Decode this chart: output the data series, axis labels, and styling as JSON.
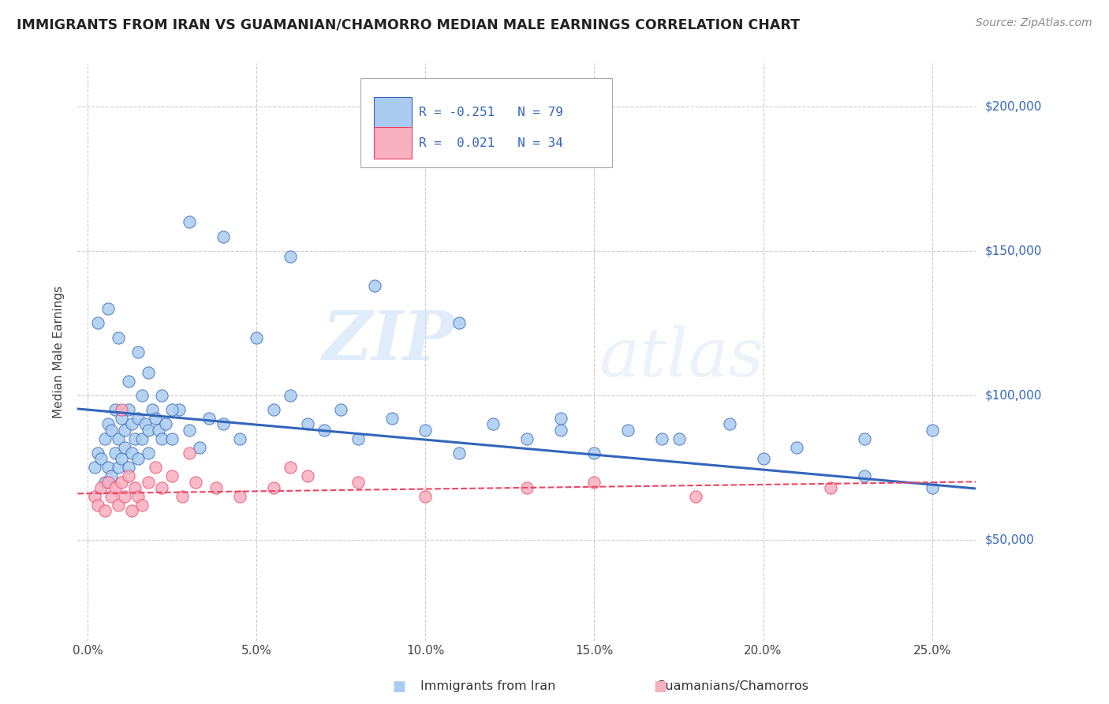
{
  "title": "IMMIGRANTS FROM IRAN VS GUAMANIAN/CHAMORRO MEDIAN MALE EARNINGS CORRELATION CHART",
  "source": "Source: ZipAtlas.com",
  "ylabel": "Median Male Earnings",
  "xlabel_ticks": [
    "0.0%",
    "5.0%",
    "10.0%",
    "15.0%",
    "20.0%",
    "25.0%"
  ],
  "xlabel_vals": [
    0.0,
    0.05,
    0.1,
    0.15,
    0.2,
    0.25
  ],
  "ylabel_ticks": [
    "$50,000",
    "$100,000",
    "$150,000",
    "$200,000"
  ],
  "ylabel_vals": [
    50000,
    100000,
    150000,
    200000
  ],
  "ylim": [
    15000,
    215000
  ],
  "xlim": [
    -0.003,
    0.263
  ],
  "r1": -0.251,
  "n1": 79,
  "r2": 0.021,
  "n2": 34,
  "legend_label1": "Immigrants from Iran",
  "legend_label2": "Guamanians/Chamorros",
  "color1": "#aaccf0",
  "color2": "#f8b0c0",
  "line_color1": "#3366bb",
  "line_color2": "#ee4466",
  "watermark_zip": "ZIP",
  "watermark_atlas": "atlas",
  "background_color": "#ffffff",
  "grid_color": "#cccccc",
  "trend1_x0": 0.0,
  "trend1_y0": 95000,
  "trend1_x1": 0.26,
  "trend1_y1": 68000,
  "trend2_x0": 0.0,
  "trend2_y0": 66000,
  "trend2_x1": 0.26,
  "trend2_y1": 70000,
  "scatter1_x": [
    0.002,
    0.003,
    0.004,
    0.005,
    0.005,
    0.006,
    0.006,
    0.007,
    0.007,
    0.008,
    0.008,
    0.009,
    0.009,
    0.01,
    0.01,
    0.011,
    0.011,
    0.012,
    0.012,
    0.013,
    0.013,
    0.014,
    0.015,
    0.015,
    0.016,
    0.016,
    0.017,
    0.018,
    0.018,
    0.019,
    0.02,
    0.021,
    0.022,
    0.023,
    0.025,
    0.027,
    0.03,
    0.033,
    0.036,
    0.04,
    0.045,
    0.05,
    0.055,
    0.06,
    0.065,
    0.07,
    0.075,
    0.08,
    0.09,
    0.1,
    0.11,
    0.12,
    0.13,
    0.14,
    0.15,
    0.16,
    0.175,
    0.19,
    0.21,
    0.23,
    0.25,
    0.003,
    0.006,
    0.009,
    0.012,
    0.015,
    0.018,
    0.022,
    0.025,
    0.03,
    0.04,
    0.06,
    0.085,
    0.11,
    0.14,
    0.17,
    0.2,
    0.23,
    0.25
  ],
  "scatter1_y": [
    75000,
    80000,
    78000,
    85000,
    70000,
    90000,
    75000,
    88000,
    72000,
    95000,
    80000,
    85000,
    75000,
    92000,
    78000,
    88000,
    82000,
    95000,
    75000,
    90000,
    80000,
    85000,
    92000,
    78000,
    100000,
    85000,
    90000,
    88000,
    80000,
    95000,
    92000,
    88000,
    85000,
    90000,
    85000,
    95000,
    88000,
    82000,
    92000,
    90000,
    85000,
    120000,
    95000,
    100000,
    90000,
    88000,
    95000,
    85000,
    92000,
    88000,
    80000,
    90000,
    85000,
    88000,
    80000,
    88000,
    85000,
    90000,
    82000,
    85000,
    88000,
    125000,
    130000,
    120000,
    105000,
    115000,
    108000,
    100000,
    95000,
    160000,
    155000,
    148000,
    138000,
    125000,
    92000,
    85000,
    78000,
    72000,
    68000
  ],
  "scatter2_x": [
    0.002,
    0.003,
    0.004,
    0.005,
    0.006,
    0.007,
    0.008,
    0.009,
    0.01,
    0.011,
    0.012,
    0.013,
    0.014,
    0.015,
    0.016,
    0.018,
    0.02,
    0.022,
    0.025,
    0.028,
    0.032,
    0.038,
    0.045,
    0.055,
    0.065,
    0.08,
    0.1,
    0.13,
    0.15,
    0.18,
    0.22,
    0.01,
    0.03,
    0.06
  ],
  "scatter2_y": [
    65000,
    62000,
    68000,
    60000,
    70000,
    65000,
    68000,
    62000,
    70000,
    65000,
    72000,
    60000,
    68000,
    65000,
    62000,
    70000,
    75000,
    68000,
    72000,
    65000,
    70000,
    68000,
    65000,
    68000,
    72000,
    70000,
    65000,
    68000,
    70000,
    65000,
    68000,
    95000,
    80000,
    75000
  ]
}
